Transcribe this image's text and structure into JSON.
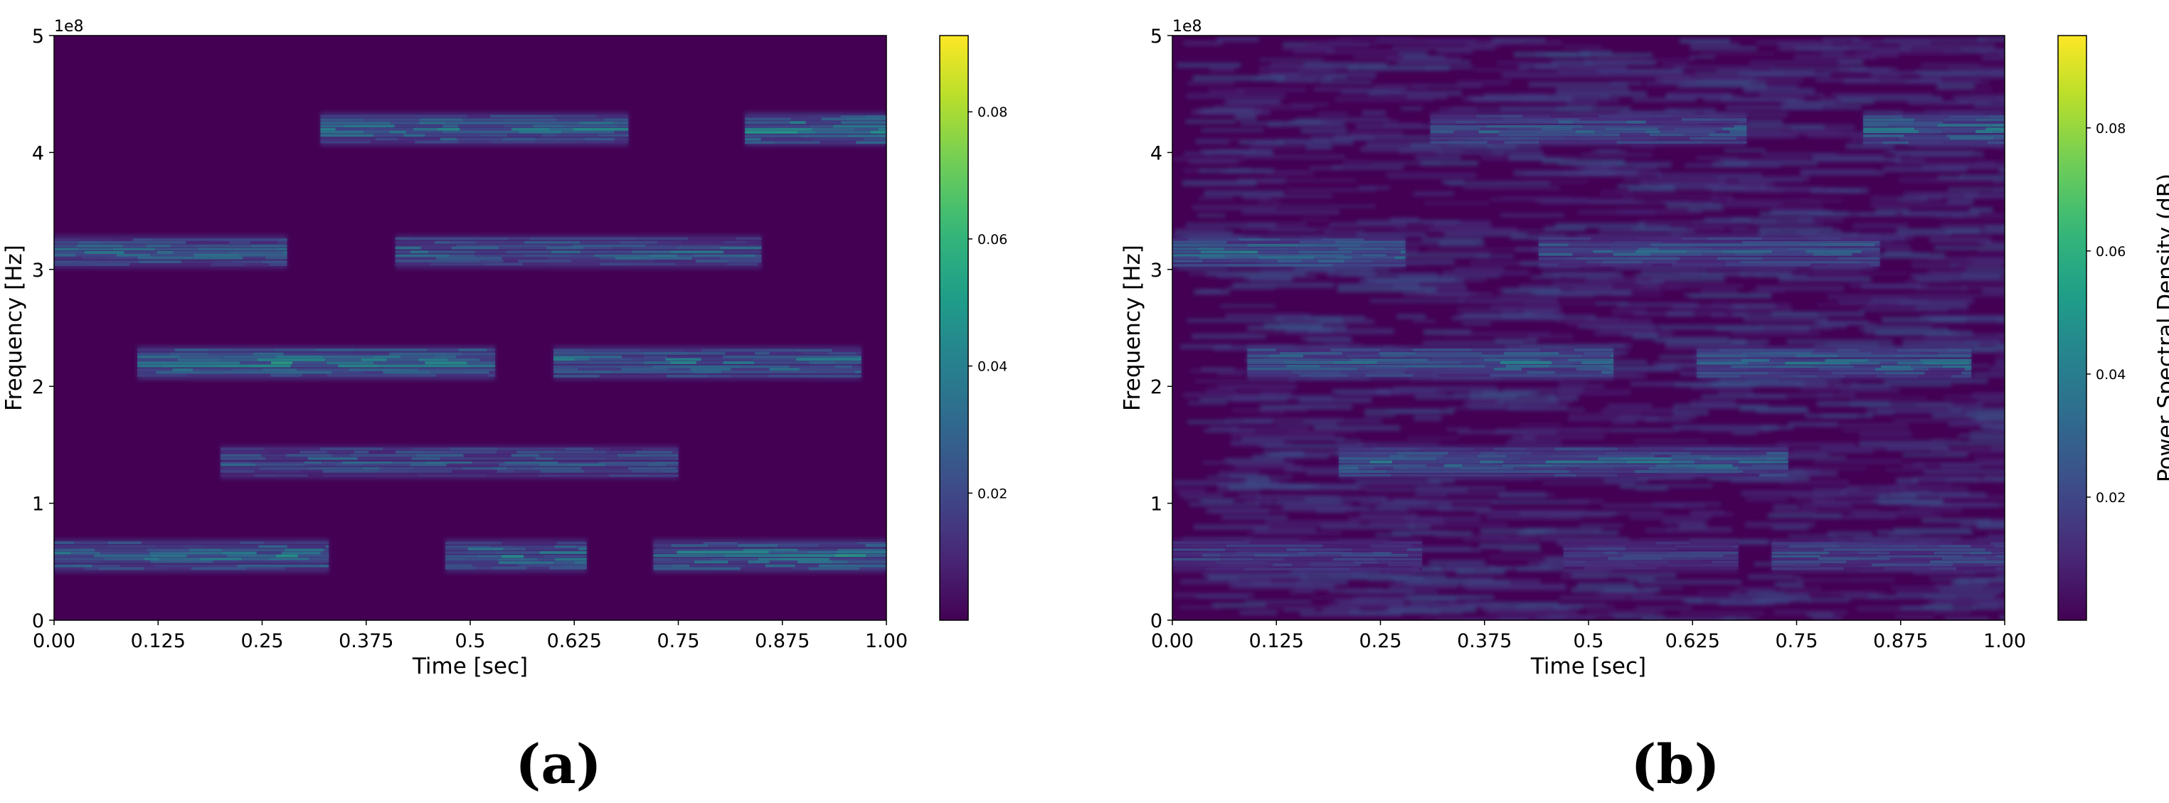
{
  "chart_data": [
    {
      "type": "heatmap",
      "panel_label": "(a)",
      "xlabel": "Time [sec]",
      "ylabel": "Frequency [Hz]",
      "y_offset_text": "1e8",
      "xlim": [
        0.0,
        1.0
      ],
      "ylim": [
        0,
        500000000
      ],
      "x_tick_labels": [
        "0.00",
        "0.125",
        "0.25",
        "0.375",
        "0.5",
        "0.625",
        "0.75",
        "0.875",
        "1.00"
      ],
      "x_ticks": [
        0,
        0.125,
        0.25,
        0.375,
        0.5,
        0.625,
        0.75,
        0.875,
        1.0
      ],
      "y_tick_labels": [
        "0",
        "1",
        "2",
        "3",
        "4",
        "5"
      ],
      "y_ticks": [
        0,
        100000000,
        200000000,
        300000000,
        400000000,
        500000000
      ],
      "colormap": "viridis",
      "colorbar": {
        "label": "",
        "range": [
          0,
          0.092
        ],
        "tick_labels": [
          "0.02",
          "0.04",
          "0.06",
          "0.08"
        ],
        "ticks": [
          0.02,
          0.04,
          0.06,
          0.08
        ]
      },
      "noise_level": 0.0,
      "bursts": [
        {
          "t_start": 0.0,
          "t_end": 0.33,
          "freq": 55000000,
          "peak": 0.052
        },
        {
          "t_start": 0.47,
          "t_end": 0.64,
          "freq": 55000000,
          "peak": 0.05
        },
        {
          "t_start": 0.72,
          "t_end": 1.0,
          "freq": 55000000,
          "peak": 0.055
        },
        {
          "t_start": 0.2,
          "t_end": 0.75,
          "freq": 135000000,
          "peak": 0.04
        },
        {
          "t_start": 0.1,
          "t_end": 0.53,
          "freq": 220000000,
          "peak": 0.055
        },
        {
          "t_start": 0.6,
          "t_end": 0.97,
          "freq": 220000000,
          "peak": 0.05
        },
        {
          "t_start": 0.0,
          "t_end": 0.28,
          "freq": 315000000,
          "peak": 0.045
        },
        {
          "t_start": 0.41,
          "t_end": 0.85,
          "freq": 315000000,
          "peak": 0.045
        },
        {
          "t_start": 0.32,
          "t_end": 0.69,
          "freq": 420000000,
          "peak": 0.05
        },
        {
          "t_start": 0.83,
          "t_end": 1.0,
          "freq": 420000000,
          "peak": 0.06
        }
      ]
    },
    {
      "type": "heatmap",
      "panel_label": "(b)",
      "xlabel": "Time [sec]",
      "ylabel": "Frequency [Hz]",
      "y_offset_text": "1e8",
      "xlim": [
        0.0,
        1.0
      ],
      "ylim": [
        0,
        500000000
      ],
      "x_tick_labels": [
        "0.00",
        "0.125",
        "0.25",
        "0.375",
        "0.5",
        "0.625",
        "0.75",
        "0.875",
        "1.00"
      ],
      "x_ticks": [
        0,
        0.125,
        0.25,
        0.375,
        0.5,
        0.625,
        0.75,
        0.875,
        1.0
      ],
      "y_tick_labels": [
        "0",
        "1",
        "2",
        "3",
        "4",
        "5"
      ],
      "y_ticks": [
        0,
        100000000,
        200000000,
        300000000,
        400000000,
        500000000
      ],
      "colormap": "viridis",
      "colorbar": {
        "label": "Power Spectral Density (dB)",
        "range": [
          0,
          0.095
        ],
        "tick_labels": [
          "0.02",
          "0.04",
          "0.06",
          "0.08"
        ],
        "ticks": [
          0.02,
          0.04,
          0.06,
          0.08
        ]
      },
      "noise_level": 0.018,
      "bursts": [
        {
          "t_start": 0.0,
          "t_end": 0.3,
          "freq": 55000000,
          "peak": 0.03
        },
        {
          "t_start": 0.47,
          "t_end": 0.68,
          "freq": 55000000,
          "peak": 0.028
        },
        {
          "t_start": 0.72,
          "t_end": 1.0,
          "freq": 55000000,
          "peak": 0.035
        },
        {
          "t_start": 0.2,
          "t_end": 0.74,
          "freq": 135000000,
          "peak": 0.045
        },
        {
          "t_start": 0.09,
          "t_end": 0.53,
          "freq": 220000000,
          "peak": 0.048
        },
        {
          "t_start": 0.63,
          "t_end": 0.96,
          "freq": 220000000,
          "peak": 0.045
        },
        {
          "t_start": 0.0,
          "t_end": 0.28,
          "freq": 315000000,
          "peak": 0.05
        },
        {
          "t_start": 0.44,
          "t_end": 0.85,
          "freq": 315000000,
          "peak": 0.04
        },
        {
          "t_start": 0.31,
          "t_end": 0.69,
          "freq": 420000000,
          "peak": 0.042
        },
        {
          "t_start": 0.83,
          "t_end": 1.0,
          "freq": 420000000,
          "peak": 0.05
        }
      ]
    }
  ]
}
